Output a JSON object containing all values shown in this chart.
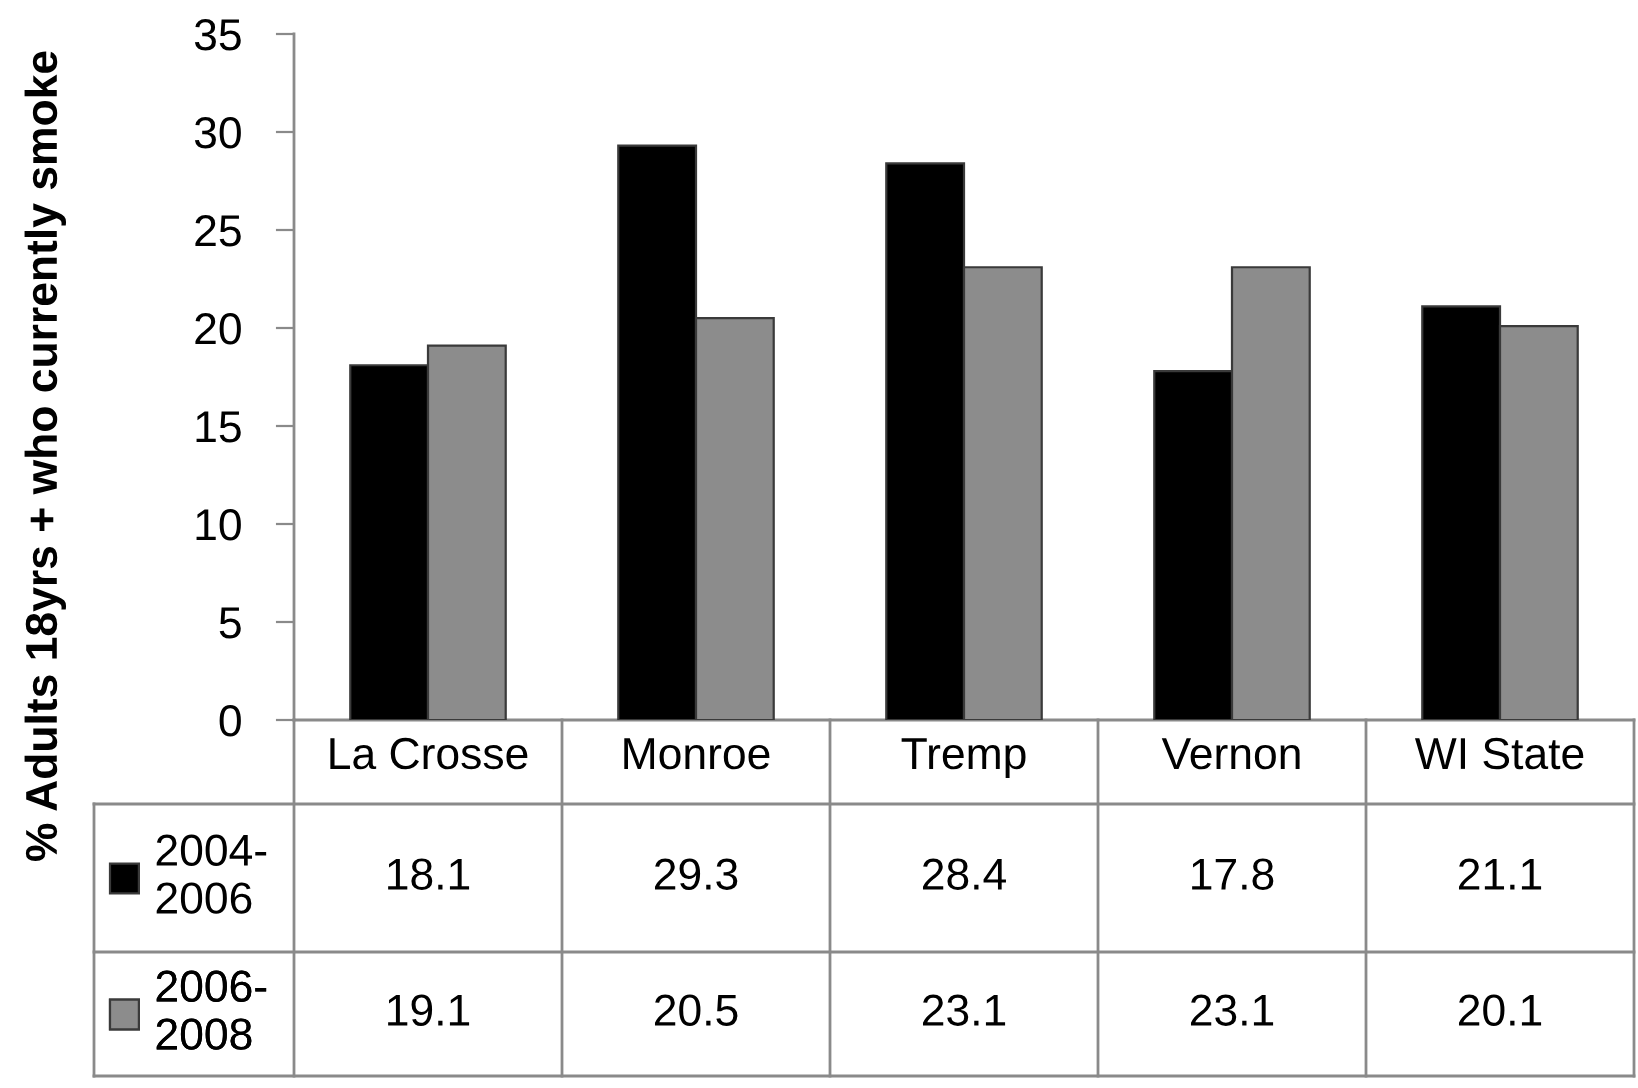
{
  "chart_data": {
    "type": "bar",
    "ylabel": "% Adults 18yrs + who currently smoke",
    "categories": [
      "La Crosse",
      "Monroe",
      "Tremp",
      "Vernon",
      "WI State"
    ],
    "series": [
      {
        "name": "2004-2006",
        "color": "#000000",
        "values": [
          18.1,
          29.3,
          28.4,
          17.8,
          21.1
        ]
      },
      {
        "name": "2006-2008",
        "color": "#8c8c8c",
        "values": [
          19.1,
          20.5,
          23.1,
          23.1,
          20.1
        ]
      }
    ],
    "ylim": [
      0,
      35
    ],
    "yticks": [
      0,
      5,
      10,
      15,
      20,
      25,
      30,
      35
    ],
    "data_labels": true,
    "legend": "bottom left",
    "grid": false
  }
}
